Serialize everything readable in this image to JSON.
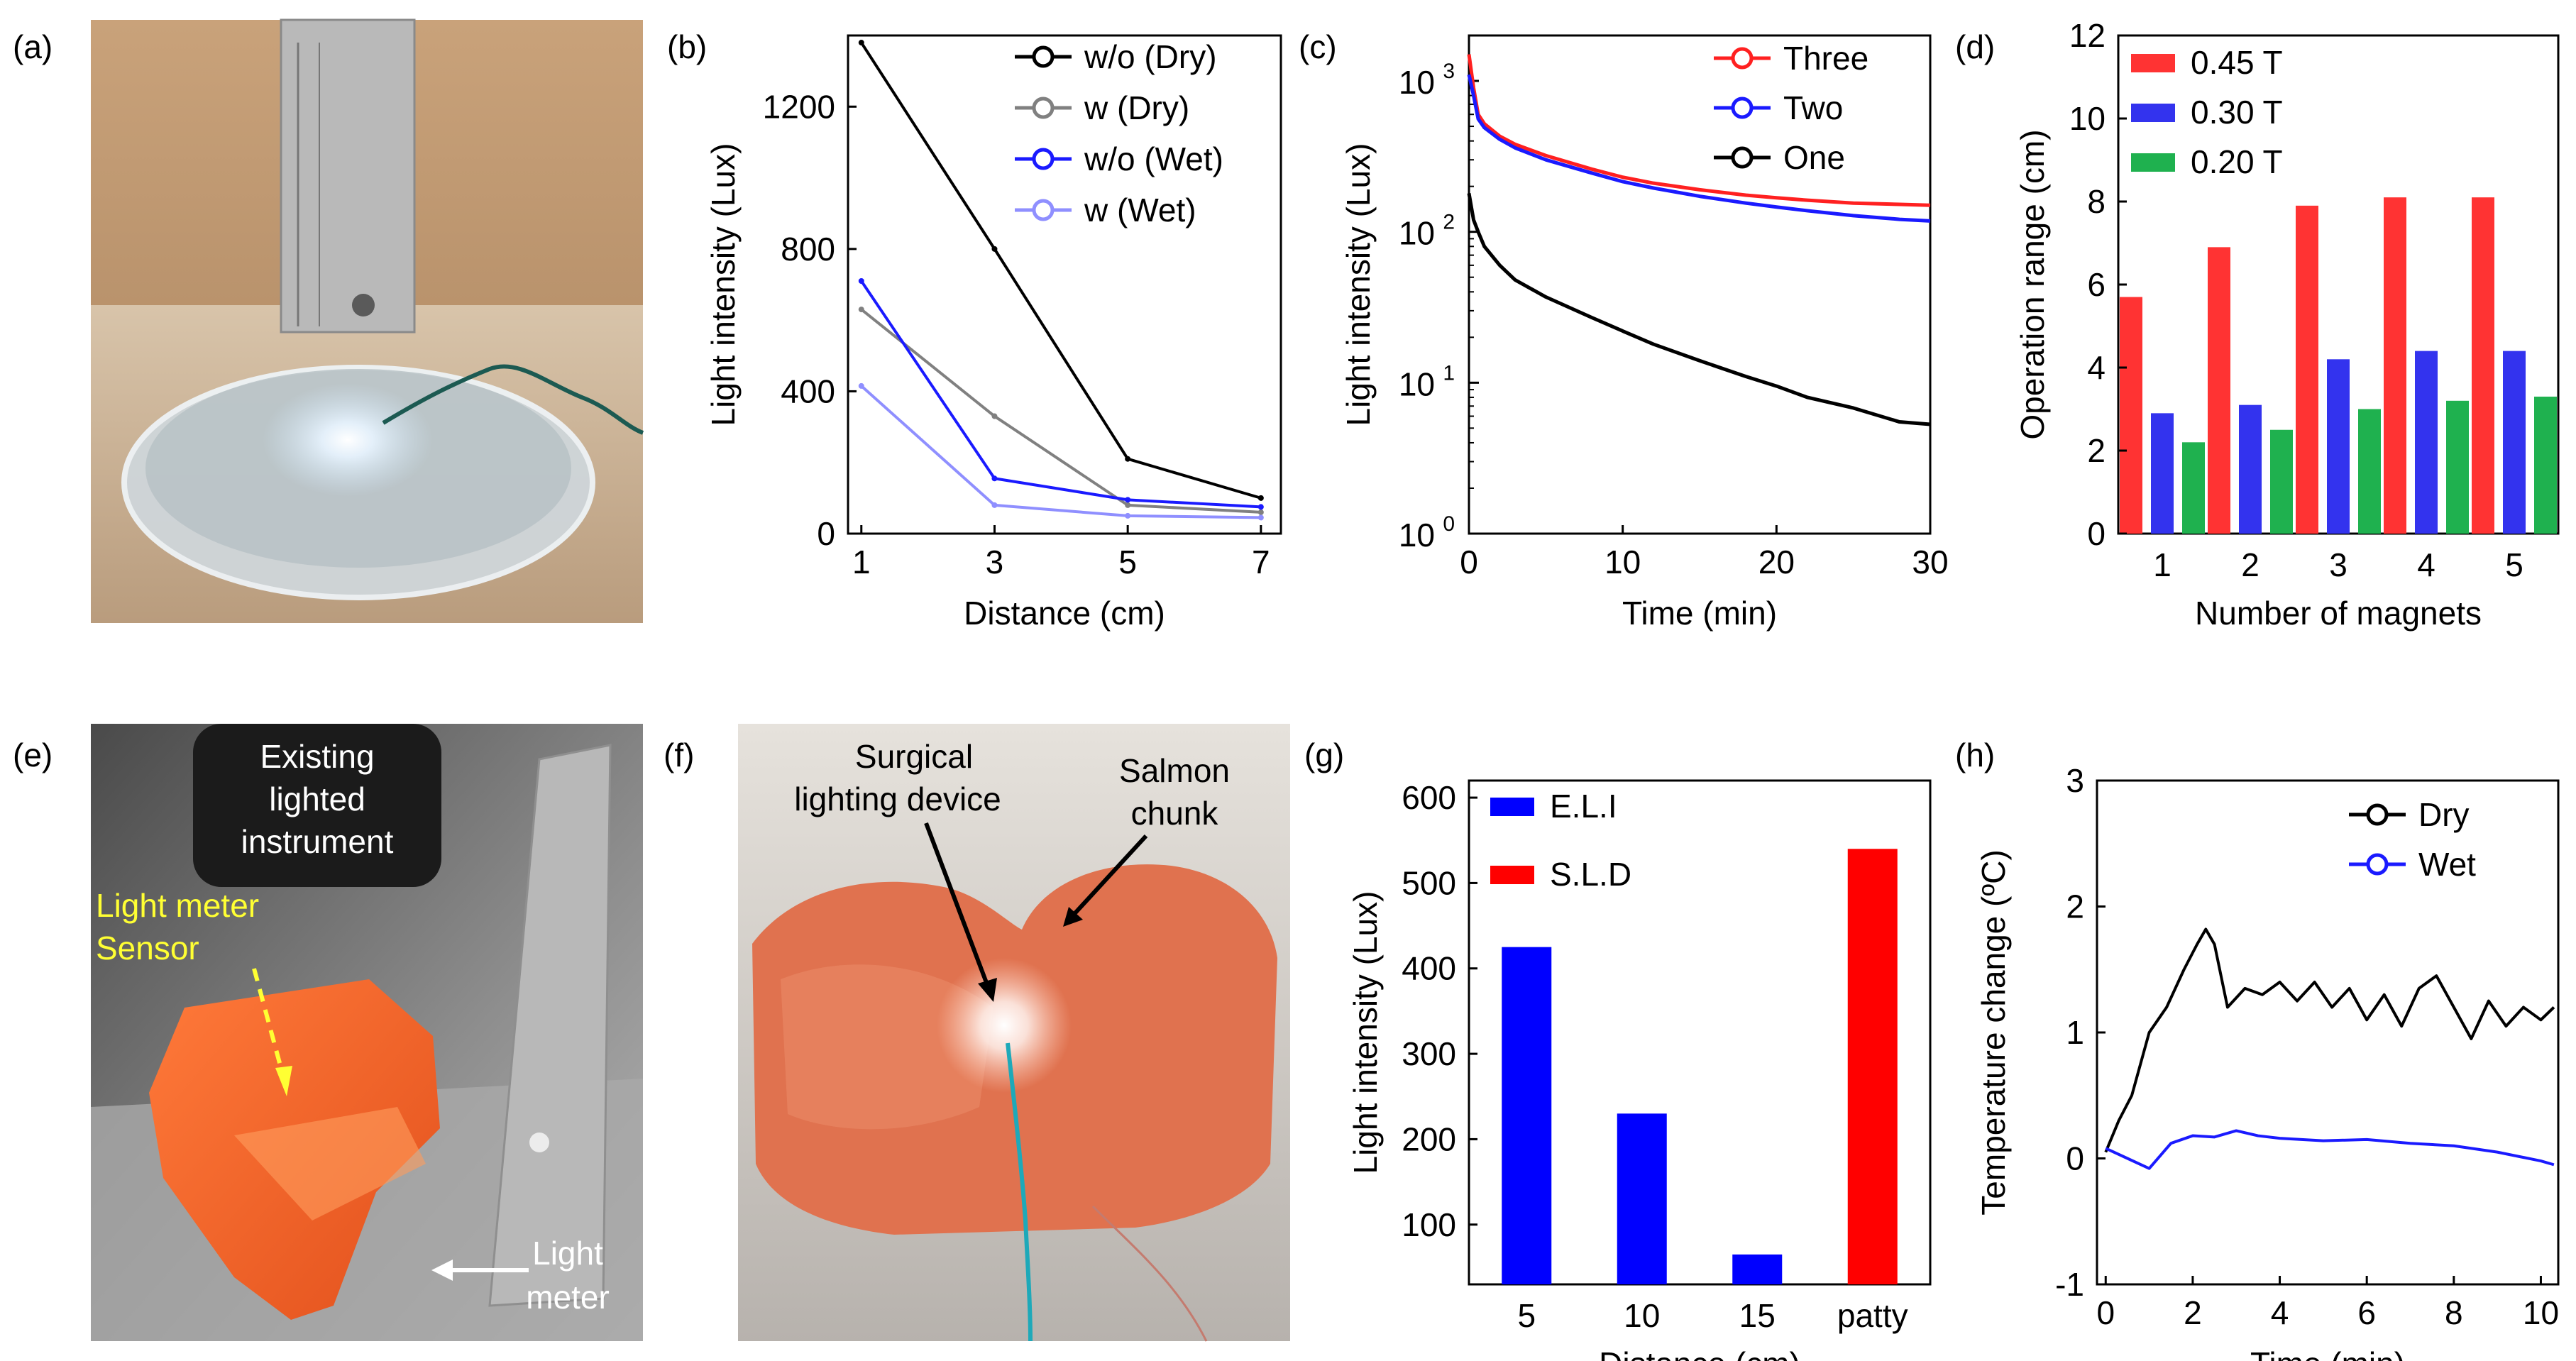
{
  "figure": {
    "panels": {
      "a": {
        "label": "(a)"
      },
      "b": {
        "label": "(b)"
      },
      "c": {
        "label": "(c)"
      },
      "d": {
        "label": "(d)"
      },
      "e": {
        "label": "(e)",
        "annotations": [
          "Existing",
          "lighted",
          "instrument",
          "Light meter",
          "Sensor",
          "Light",
          "meter"
        ]
      },
      "f": {
        "label": "(f)",
        "annotations": [
          "Surgical",
          "lighting device",
          "Salmon",
          "chunk"
        ]
      },
      "g": {
        "label": "(g)"
      },
      "h": {
        "label": "(h)"
      }
    }
  },
  "chart_data": [
    {
      "panel": "b",
      "type": "line",
      "xlabel": "Distance (cm)",
      "ylabel": "Light intensity (Lux)",
      "xlim": [
        0.8,
        7.3
      ],
      "ylim": [
        0,
        1400
      ],
      "xticks": [
        1,
        3,
        5,
        7
      ],
      "yticks": [
        0,
        400,
        800,
        1200
      ],
      "x": [
        1,
        3,
        5,
        7
      ],
      "legend_position": "top-right",
      "series": [
        {
          "name": "w/o (Dry)",
          "color": "#000000",
          "values": [
            1380,
            800,
            210,
            100
          ]
        },
        {
          "name": "w    (Dry)",
          "color": "#808080",
          "values": [
            630,
            330,
            80,
            60
          ]
        },
        {
          "name": "w/o (Wet)",
          "color": "#1a1aff",
          "values": [
            710,
            155,
            95,
            75
          ]
        },
        {
          "name": "w    (Wet)",
          "color": "#8f8fff",
          "values": [
            415,
            80,
            50,
            45
          ]
        }
      ]
    },
    {
      "panel": "c",
      "type": "line",
      "xlabel": "Time (min)",
      "ylabel": "Light intensity (Lux)",
      "xlim": [
        0,
        30
      ],
      "ylim": [
        1,
        2000
      ],
      "yscale": "log",
      "xticks": [
        0,
        10,
        20,
        30
      ],
      "yticks": [
        1,
        10,
        100,
        1000
      ],
      "ytick_labels": [
        "10",
        "10",
        "10",
        "10"
      ],
      "ytick_exponents": [
        "0",
        "1",
        "2",
        "3"
      ],
      "legend_position": "top-right",
      "series": [
        {
          "name": "Three",
          "color": "#ff2020",
          "x": [
            0,
            0.3,
            0.6,
            1,
            2,
            3,
            5,
            8,
            10,
            12,
            15,
            18,
            20,
            22,
            25,
            28,
            30
          ],
          "values": [
            1500,
            900,
            600,
            520,
            430,
            380,
            320,
            260,
            230,
            210,
            190,
            175,
            168,
            162,
            155,
            152,
            150
          ]
        },
        {
          "name": "Two",
          "color": "#1a1aff",
          "x": [
            0,
            0.3,
            0.6,
            1,
            2,
            3,
            5,
            8,
            10,
            12,
            15,
            18,
            20,
            22,
            25,
            28,
            30
          ],
          "values": [
            1100,
            800,
            560,
            490,
            410,
            360,
            300,
            245,
            215,
            195,
            172,
            155,
            146,
            138,
            128,
            121,
            118
          ]
        },
        {
          "name": "One",
          "color": "#000000",
          "x": [
            0,
            0.3,
            0.6,
            1,
            2,
            3,
            5,
            8,
            10,
            12,
            15,
            18,
            20,
            22,
            25,
            28,
            30
          ],
          "values": [
            180,
            120,
            100,
            80,
            60,
            48,
            37,
            27,
            22,
            18,
            14,
            11,
            9.5,
            8,
            6.8,
            5.5,
            5.3
          ]
        }
      ]
    },
    {
      "panel": "d",
      "type": "bar",
      "xlabel": "Number of magnets",
      "ylabel": "Operation range (cm)",
      "ylim": [
        0,
        12
      ],
      "yticks": [
        0,
        2,
        4,
        6,
        8,
        10,
        12
      ],
      "categories": [
        "1",
        "2",
        "3",
        "4",
        "5"
      ],
      "legend_position": "top-left",
      "series": [
        {
          "name": "0.45 T",
          "color": "#ff3333",
          "values": [
            5.7,
            6.9,
            7.9,
            8.1,
            8.1
          ]
        },
        {
          "name": "0.30 T",
          "color": "#3333ee",
          "values": [
            2.9,
            3.1,
            4.2,
            4.4,
            4.4
          ]
        },
        {
          "name": "0.20 T",
          "color": "#1fb14f",
          "values": [
            2.2,
            2.5,
            3.0,
            3.2,
            3.3
          ]
        }
      ]
    },
    {
      "panel": "g",
      "type": "bar",
      "xlabel": "Distance (cm)",
      "ylabel": "Light intensity (Lux)",
      "ylim": [
        30,
        620
      ],
      "yticks": [
        100,
        200,
        300,
        400,
        500,
        600
      ],
      "categories": [
        "5",
        "10",
        "15",
        "patty"
      ],
      "values": [
        425,
        230,
        65,
        540
      ],
      "bar_series": [
        "E.L.I",
        "E.L.I",
        "E.L.I",
        "S.L.D"
      ],
      "legend_position": "top-left",
      "series": [
        {
          "name": "E.L.I",
          "color": "#0000ff"
        },
        {
          "name": "S.L.D",
          "color": "#ff0000"
        }
      ]
    },
    {
      "panel": "h",
      "type": "line",
      "xlabel": "Time (min)",
      "ylabel": "Temperature change (ºC)",
      "xlim": [
        -0.2,
        10.4
      ],
      "ylim": [
        -1,
        3
      ],
      "xticks": [
        0,
        2,
        4,
        6,
        8,
        10
      ],
      "yticks": [
        -1,
        0,
        1,
        2,
        3
      ],
      "legend_position": "top-right",
      "series": [
        {
          "name": "Dry",
          "color": "#000000",
          "x": [
            0,
            0.3,
            0.6,
            1.0,
            1.4,
            1.8,
            2.1,
            2.3,
            2.5,
            2.8,
            3.2,
            3.6,
            4.0,
            4.4,
            4.8,
            5.2,
            5.6,
            6.0,
            6.4,
            6.8,
            7.2,
            7.6,
            8.0,
            8.4,
            8.8,
            9.2,
            9.6,
            10.0,
            10.3
          ],
          "values": [
            0.05,
            0.3,
            0.5,
            1.0,
            1.2,
            1.5,
            1.7,
            1.82,
            1.7,
            1.2,
            1.35,
            1.3,
            1.4,
            1.25,
            1.4,
            1.2,
            1.35,
            1.1,
            1.3,
            1.05,
            1.35,
            1.45,
            1.2,
            0.95,
            1.25,
            1.05,
            1.2,
            1.1,
            1.2
          ]
        },
        {
          "name": "Wet",
          "color": "#1a1aff",
          "x": [
            0,
            0.5,
            1.0,
            1.5,
            2.0,
            2.5,
            3.0,
            3.5,
            4.0,
            5.0,
            6.0,
            7.0,
            8.0,
            9.0,
            10.0,
            10.3
          ],
          "values": [
            0.08,
            0.0,
            -0.08,
            0.12,
            0.18,
            0.17,
            0.22,
            0.18,
            0.16,
            0.14,
            0.15,
            0.12,
            0.1,
            0.05,
            -0.02,
            -0.05
          ]
        }
      ]
    }
  ]
}
